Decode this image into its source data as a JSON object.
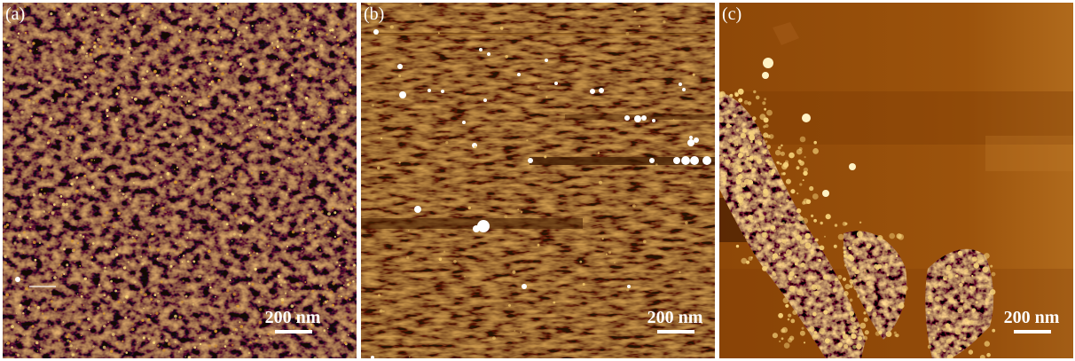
{
  "panels": [
    {
      "label": "(a)",
      "scale_text": "200 nm"
    },
    {
      "label": "(b)",
      "scale_text": "200 nm"
    },
    {
      "label": "(c)",
      "scale_text": "200 nm"
    }
  ],
  "colors": {
    "background": "#ffffff",
    "afm_dark": "#5a2a04",
    "afm_mid": "#a55a0c",
    "afm_bright": "#f2c24a",
    "afm_peak": "#ffffff",
    "text": "#ffffff"
  }
}
